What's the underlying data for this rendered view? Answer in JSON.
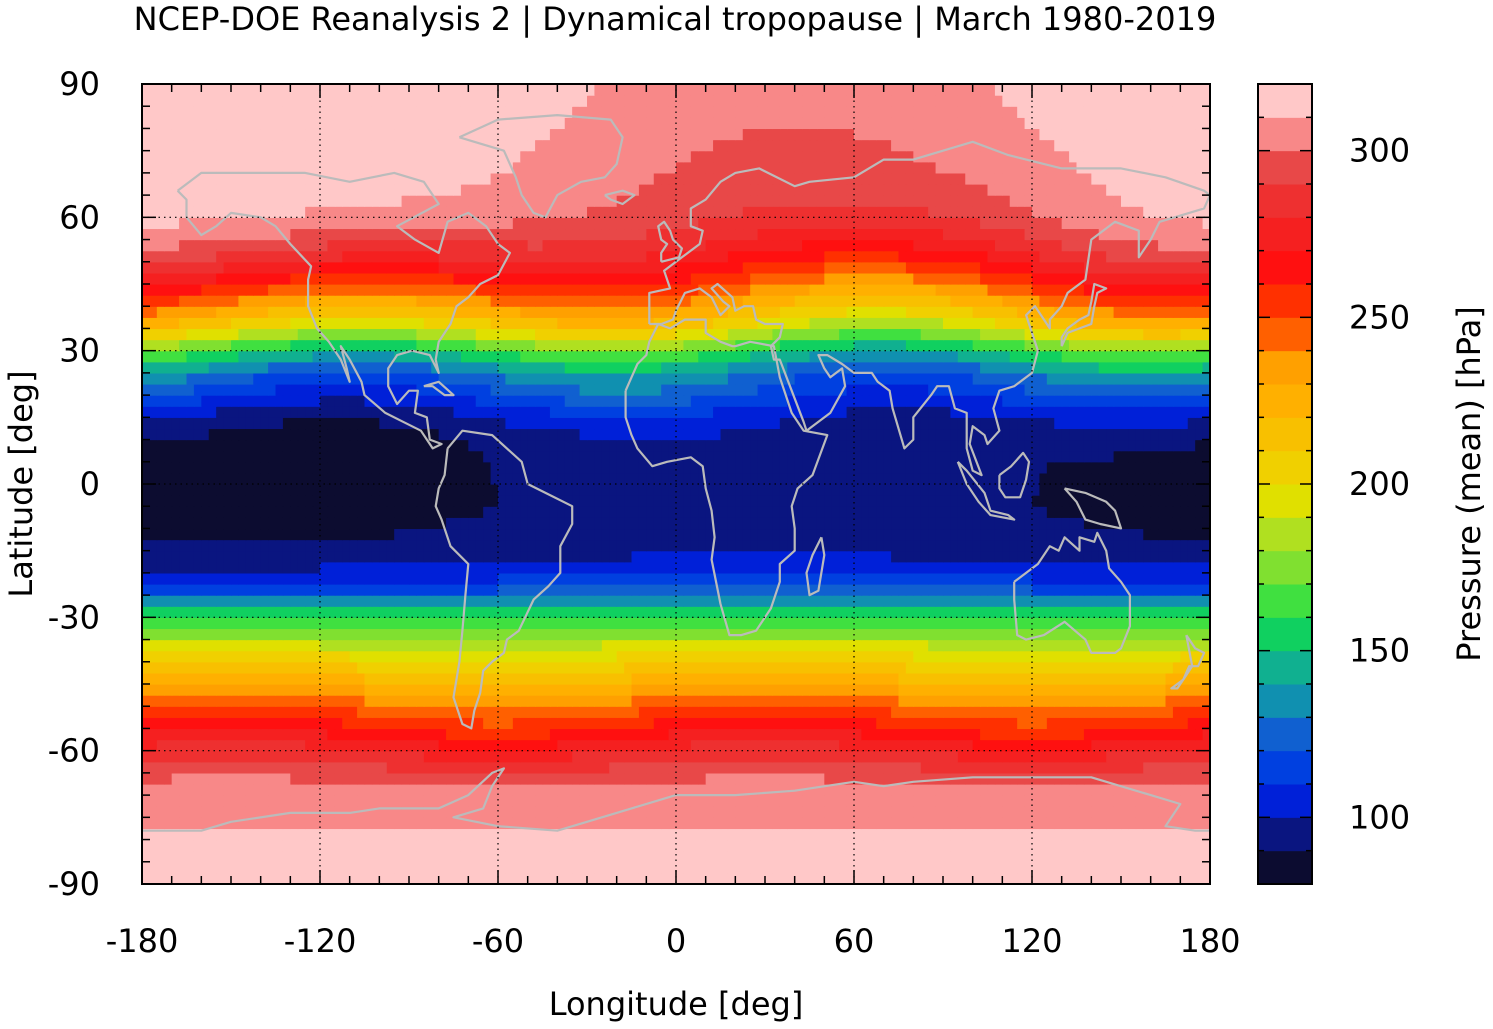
{
  "chart_data": {
    "type": "heatmap",
    "title": "NCEP-DOE Reanalysis 2 | Dynamical tropopause | March 1980-2019",
    "xlabel": "Longitude [deg]",
    "ylabel": "Latitude [deg]",
    "colorbar_label": "Pressure (mean) [hPa]",
    "xlim": [
      -180,
      180
    ],
    "ylim": [
      -90,
      90
    ],
    "xticks": [
      -180,
      -120,
      -60,
      0,
      60,
      120,
      180
    ],
    "yticks": [
      -90,
      -60,
      -30,
      0,
      30,
      60,
      90
    ],
    "colorbar_ticks": [
      100,
      150,
      200,
      250,
      300
    ],
    "colorbar_range": [
      80,
      320
    ],
    "grid": true,
    "coastline_color": "#bbbbbb",
    "levels": [
      80,
      90,
      100,
      110,
      120,
      130,
      140,
      150,
      160,
      170,
      180,
      190,
      200,
      210,
      220,
      230,
      240,
      250,
      260,
      270,
      280,
      290,
      300,
      310,
      320
    ],
    "colors": [
      "#0c0c30",
      "#0a1580",
      "#0020d8",
      "#0040e0",
      "#1060d0",
      "#1090b0",
      "#10b090",
      "#10d060",
      "#40e040",
      "#80e030",
      "#b0e020",
      "#e0e000",
      "#f0d000",
      "#f8c000",
      "#ffb000",
      "#ffa000",
      "#ff6000",
      "#ff3000",
      "#ff1010",
      "#f52020",
      "#ee3030",
      "#e84848",
      "#f88888",
      "#ffc8c8"
    ],
    "zonal_profile": {
      "latitude": [
        -90,
        -80,
        -70,
        -65,
        -60,
        -55,
        -50,
        -45,
        -40,
        -35,
        -30,
        -25,
        -20,
        -15,
        -10,
        -5,
        0,
        5,
        10,
        15,
        20,
        25,
        30,
        35,
        40,
        45,
        50,
        55,
        60,
        65,
        70,
        75,
        80,
        90
      ],
      "pressure_hPa": [
        315,
        312,
        305,
        295,
        280,
        262,
        245,
        225,
        205,
        185,
        160,
        125,
        105,
        95,
        92,
        90,
        90,
        90,
        92,
        100,
        115,
        130,
        160,
        200,
        230,
        255,
        275,
        290,
        300,
        305,
        308,
        310,
        312,
        315
      ]
    }
  }
}
